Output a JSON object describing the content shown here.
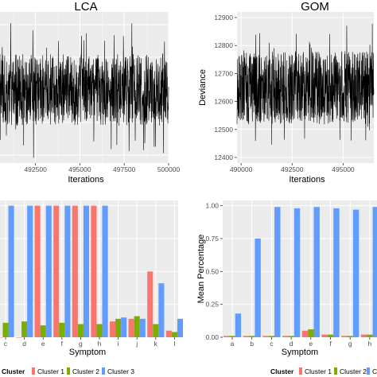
{
  "chart_data": [
    {
      "type": "line",
      "title": "LCA",
      "xlabel": "Iterations",
      "ylabel": "",
      "x_ticks": [
        "492500",
        "495000",
        "497500",
        "500000"
      ],
      "y_ticks": [],
      "xlim": [
        490500,
        500000
      ],
      "grid": true,
      "series": [
        {
          "description_values": "trace plot, dense noise band"
        }
      ]
    },
    {
      "type": "line",
      "title": "GOM",
      "xlabel": "Iterations",
      "ylabel": "Deviance",
      "x_ticks": [
        "490000",
        "492500",
        "495000"
      ],
      "y_ticks": [
        "12400",
        "12500",
        "12600",
        "12700",
        "12800",
        "12900"
      ],
      "xlim": [
        489800,
        496500
      ],
      "ylim": [
        12380,
        12920
      ],
      "grid": true,
      "series": [
        {
          "center": 12650,
          "min": 12420,
          "max": 12895
        }
      ]
    },
    {
      "type": "bar",
      "title": "",
      "xlabel": "Symptom",
      "ylabel": "",
      "categories": [
        "c",
        "d",
        "e",
        "f",
        "g",
        "h",
        "i",
        "j",
        "k",
        "l"
      ],
      "ylim": [
        0,
        1.04
      ],
      "grid": true,
      "legend_position": "bottom",
      "legend_title": "Cluster",
      "series": [
        {
          "name": "Cluster 1",
          "color": "#F8766D",
          "values": [
            0.0,
            0.0,
            1.0,
            1.0,
            1.0,
            1.0,
            0.12,
            0.14,
            0.5,
            0.05
          ]
        },
        {
          "name": "Cluster 2",
          "color": "#7CAE00",
          "values": [
            0.11,
            0.12,
            0.09,
            0.11,
            0.1,
            0.1,
            0.14,
            0.16,
            0.1,
            0.04
          ]
        },
        {
          "name": "Cluster 3",
          "color": "#619CFF",
          "values": [
            1.0,
            1.0,
            1.0,
            1.0,
            1.0,
            1.0,
            0.15,
            0.14,
            0.41,
            0.14
          ]
        }
      ]
    },
    {
      "type": "bar",
      "title": "",
      "xlabel": "Symptom",
      "ylabel": "Mean Percentage",
      "categories": [
        "a",
        "b",
        "c",
        "d",
        "e",
        "f",
        "g",
        "h"
      ],
      "y_ticks": [
        "0.00",
        "0.25",
        "0.50",
        "0.75",
        "1.00"
      ],
      "ylim": [
        0,
        1.04
      ],
      "grid": true,
      "legend_position": "bottom",
      "legend_title": "Cluster",
      "series": [
        {
          "name": "Cluster 1",
          "color": "#F8766D",
          "values": [
            0.01,
            0.01,
            0.01,
            0.01,
            0.05,
            0.02,
            0.01,
            0.02
          ]
        },
        {
          "name": "Cluster 2",
          "color": "#7CAE00",
          "values": [
            0.01,
            0.01,
            0.01,
            0.01,
            0.06,
            0.02,
            0.01,
            0.02
          ]
        },
        {
          "name": "Cluster 3",
          "color": "#619CFF",
          "values": [
            0.18,
            0.75,
            0.99,
            0.98,
            0.99,
            0.98,
            0.97,
            0.99
          ]
        }
      ]
    }
  ],
  "legend": {
    "title": "Cluster",
    "items": [
      "Cluster 1",
      "Cluster 2",
      "Cluster 3"
    ],
    "right_items": [
      "Cluster 1",
      "Cluster 2",
      "Cl"
    ]
  }
}
